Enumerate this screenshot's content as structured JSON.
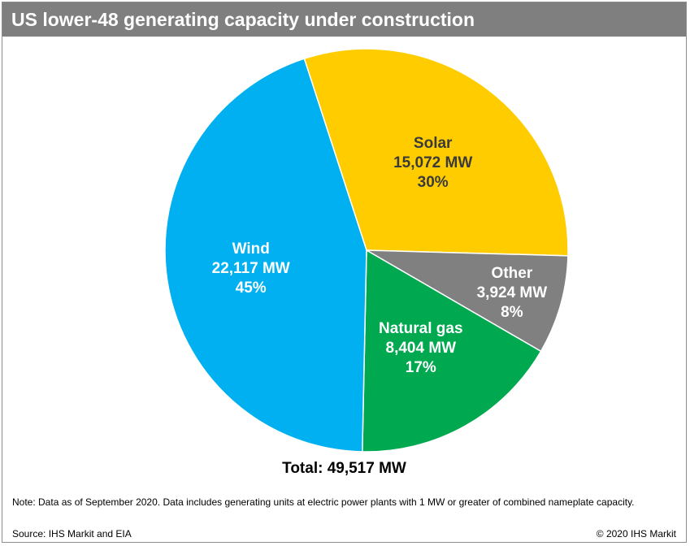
{
  "title": "US lower-48 generating capacity under construction",
  "chart_data": {
    "type": "pie",
    "slices": [
      {
        "name": "Solar",
        "value_label": "15,072 MW",
        "value": 15072,
        "percent_label": "30%",
        "percent": 30,
        "color": "#ffcc00",
        "label_color": "#3a3a3a"
      },
      {
        "name": "Other",
        "value_label": "3,924 MW",
        "value": 3924,
        "percent_label": "8%",
        "percent": 8,
        "color": "#808080",
        "label_color": "#ffffff"
      },
      {
        "name": "Natural gas",
        "value_label": "8,404 MW",
        "value": 8404,
        "percent_label": "17%",
        "percent": 17,
        "color": "#00a94f",
        "label_color": "#ffffff"
      },
      {
        "name": "Wind",
        "value_label": "22,117 MW",
        "value": 22117,
        "percent_label": "45%",
        "percent": 45,
        "color": "#00b0f0",
        "label_color": "#ffffff"
      }
    ]
  },
  "total_label": "Total: 49,517 MW",
  "footer": {
    "note": "Note: Data as of September 2020. Data includes generating units at electric power plants with 1 MW or greater of combined nameplate capacity.",
    "source": "Source: IHS Markit and EIA",
    "copyright": "© 2020 IHS Markit"
  }
}
